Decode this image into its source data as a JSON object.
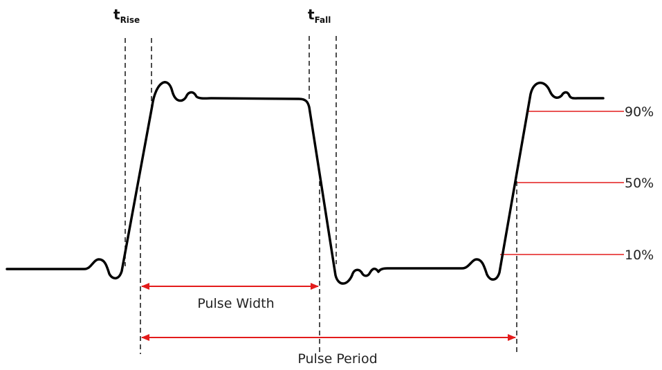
{
  "diagram": {
    "t_rise": {
      "main": "t",
      "sub": "Rise"
    },
    "t_fall": {
      "main": "t",
      "sub": "Fall"
    },
    "levels": {
      "p90": "90%",
      "p50": "50%",
      "p10": "10%"
    },
    "pulse_width_label": "Pulse Width",
    "pulse_period_label": "Pulse Period"
  },
  "colors": {
    "waveform": "#000000",
    "dashed_guides": "#000000",
    "level_lines": "#e31b1b",
    "arrows": "#e31b1b",
    "text": "#222222"
  }
}
